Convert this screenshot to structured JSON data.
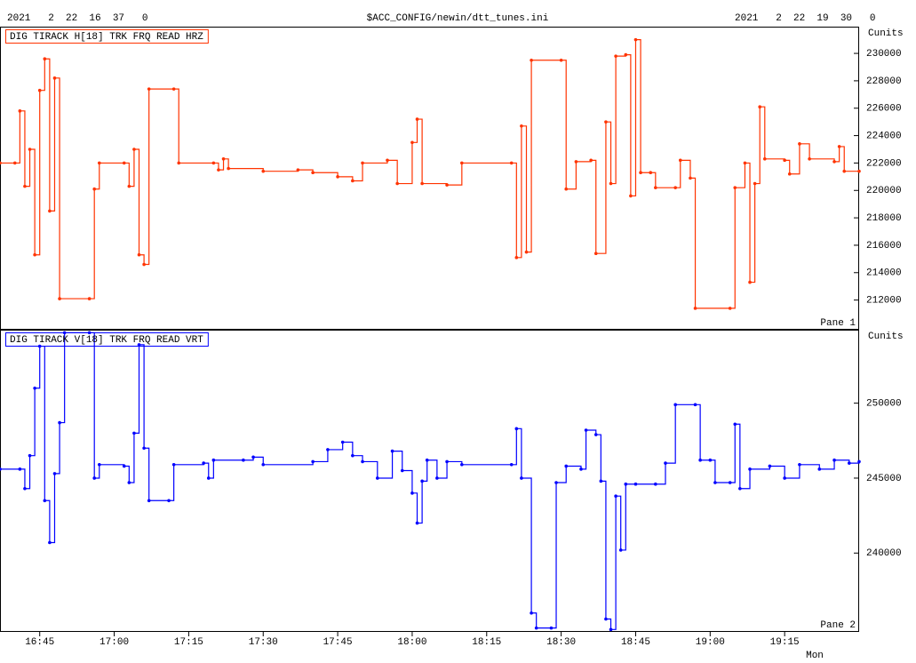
{
  "header": {
    "left": "2021   2  22  16  37   0",
    "center": "$ACC_CONFIG/newin/dtt_tunes.ini",
    "right": "2021   2  22  19  30   0"
  },
  "chart_data": [
    {
      "type": "line",
      "title": "DIG TIRACK H[18] TRK FRQ READ HRZ",
      "pane_label": "Pane 1",
      "ylabel": "Cunits",
      "xlim": [
        "16:37",
        "19:30"
      ],
      "ylim": [
        209900,
        231950
      ],
      "yticks": [
        212000,
        214000,
        216000,
        218000,
        220000,
        222000,
        224000,
        226000,
        228000,
        230000
      ],
      "series": [
        {
          "name": "DIG TIRACK H[18] TRK FRQ READ HRZ",
          "color": "#ff3300",
          "x": [
            "16:37",
            "16:40",
            "16:41",
            "16:42",
            "16:43",
            "16:44",
            "16:45",
            "16:46",
            "16:47",
            "16:48",
            "16:49",
            "16:55",
            "16:56",
            "16:57",
            "17:02",
            "17:03",
            "17:04",
            "17:05",
            "17:06",
            "17:07",
            "17:12",
            "17:13",
            "17:20",
            "17:21",
            "17:22",
            "17:23",
            "17:30",
            "17:37",
            "17:40",
            "17:45",
            "17:48",
            "17:50",
            "17:55",
            "17:57",
            "18:00",
            "18:01",
            "18:02",
            "18:07",
            "18:10",
            "18:20",
            "18:21",
            "18:22",
            "18:23",
            "18:24",
            "18:30",
            "18:31",
            "18:33",
            "18:36",
            "18:37",
            "18:39",
            "18:40",
            "18:41",
            "18:43",
            "18:44",
            "18:45",
            "18:46",
            "18:48",
            "18:49",
            "18:53",
            "18:54",
            "18:56",
            "18:57",
            "19:04",
            "19:05",
            "19:07",
            "19:08",
            "19:09",
            "19:10",
            "19:11",
            "19:15",
            "19:16",
            "19:18",
            "19:20",
            "19:25",
            "19:26",
            "19:27",
            "19:30"
          ],
          "values": [
            222000,
            222000,
            225800,
            220300,
            223000,
            215300,
            227300,
            229600,
            218500,
            228200,
            212100,
            212100,
            220100,
            222000,
            222000,
            220300,
            223000,
            215300,
            214600,
            227400,
            227400,
            222000,
            222000,
            221500,
            222300,
            221600,
            221400,
            221500,
            221300,
            221000,
            220700,
            222000,
            222200,
            220500,
            223500,
            225200,
            220500,
            220400,
            222000,
            222000,
            215100,
            224700,
            215500,
            229500,
            229500,
            220100,
            222100,
            222200,
            215400,
            225000,
            220500,
            229800,
            229900,
            219600,
            231000,
            221300,
            221300,
            220200,
            220200,
            222200,
            220900,
            211400,
            211400,
            220200,
            222000,
            213300,
            220500,
            226100,
            222300,
            222200,
            221200,
            223400,
            222300,
            222100,
            223200,
            221400,
            221400
          ]
        }
      ]
    },
    {
      "type": "line",
      "title": "DIG TIRACK V[18] TRK FRQ READ VRT",
      "pane_label": "Pane 2",
      "ylabel": "Cunits",
      "xlabel": "Mon",
      "xlim": [
        "16:37",
        "19:30"
      ],
      "ylim": [
        234800,
        254900
      ],
      "xticks": [
        "16:45",
        "17:00",
        "17:15",
        "17:30",
        "17:45",
        "18:00",
        "18:15",
        "18:30",
        "18:45",
        "19:00",
        "19:15"
      ],
      "yticks": [
        240000,
        245000,
        250000
      ],
      "series": [
        {
          "name": "DIG TIRACK V[18] TRK FRQ READ VRT",
          "color": "#0000ff",
          "x": [
            "16:37",
            "16:41",
            "16:42",
            "16:43",
            "16:44",
            "16:45",
            "16:46",
            "16:47",
            "16:48",
            "16:49",
            "16:50",
            "16:55",
            "16:56",
            "16:57",
            "17:02",
            "17:03",
            "17:04",
            "17:05",
            "17:06",
            "17:07",
            "17:11",
            "17:12",
            "17:18",
            "17:19",
            "17:20",
            "17:26",
            "17:28",
            "17:30",
            "17:40",
            "17:43",
            "17:46",
            "17:48",
            "17:50",
            "17:53",
            "17:56",
            "17:58",
            "18:00",
            "18:01",
            "18:02",
            "18:03",
            "18:05",
            "18:07",
            "18:10",
            "18:20",
            "18:21",
            "18:22",
            "18:24",
            "18:25",
            "18:28",
            "18:29",
            "18:31",
            "18:34",
            "18:35",
            "18:37",
            "18:38",
            "18:39",
            "18:40",
            "18:41",
            "18:42",
            "18:43",
            "18:45",
            "18:49",
            "18:51",
            "18:53",
            "18:57",
            "18:58",
            "19:00",
            "19:01",
            "19:04",
            "19:05",
            "19:06",
            "19:08",
            "19:12",
            "19:15",
            "19:18",
            "19:22",
            "19:25",
            "19:28",
            "19:30"
          ],
          "values": [
            245600,
            245600,
            244300,
            246500,
            251000,
            253800,
            243500,
            240700,
            245300,
            248700,
            254700,
            254700,
            245000,
            245900,
            245800,
            244700,
            248000,
            253900,
            247000,
            243500,
            243500,
            245900,
            246000,
            245000,
            246200,
            246200,
            246400,
            245900,
            246100,
            246900,
            247400,
            246500,
            246100,
            245000,
            246800,
            245500,
            244000,
            242000,
            244800,
            246200,
            245000,
            246100,
            245900,
            245900,
            248300,
            245000,
            236000,
            235000,
            235000,
            244700,
            245800,
            245600,
            248200,
            247900,
            244800,
            235600,
            234900,
            243800,
            240200,
            244600,
            244600,
            244600,
            246000,
            249900,
            249900,
            246200,
            246200,
            244700,
            244700,
            248600,
            244300,
            245600,
            245800,
            245000,
            245900,
            245600,
            246200,
            246000,
            246100
          ]
        }
      ]
    }
  ]
}
